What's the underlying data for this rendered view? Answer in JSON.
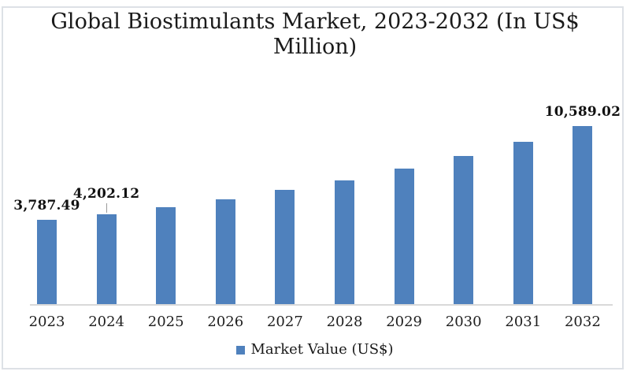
{
  "chart_data": {
    "type": "bar",
    "title": "Global Biostimulants Market, 2023-2032 (In US$ Million)",
    "title_lines": [
      "Global Biostimulants Market, 2023-2032 (In US$",
      "Million)"
    ],
    "categories": [
      "2023",
      "2024",
      "2025",
      "2026",
      "2027",
      "2028",
      "2029",
      "2030",
      "2031",
      "2032"
    ],
    "series": [
      {
        "name": "Market Value (US$)",
        "values": [
          3787.49,
          4202.12,
          4716.76,
          5294.41,
          5942.82,
          6670.65,
          7487.58,
          8404.53,
          9433.84,
          10589.02
        ]
      }
    ],
    "data_labels": [
      {
        "category": "2023",
        "text": "3,787.49",
        "leader_line": false
      },
      {
        "category": "2024",
        "text": "4,202.12",
        "leader_line": true
      },
      {
        "category": "2032",
        "text": "10,589.02",
        "leader_line": false
      }
    ],
    "legend": {
      "position": "bottom",
      "entries": [
        "Market Value (US$)"
      ]
    },
    "xlabel": "",
    "ylabel": "",
    "value_axis": {
      "visible": false,
      "gridlines": false
    },
    "colors": {
      "bar": "#4f81bd",
      "axis_line": "#d9d9d9",
      "leader_line": "#9b9b9b",
      "text": "#1a1a1a",
      "frame_border": "#dde1e6"
    }
  }
}
